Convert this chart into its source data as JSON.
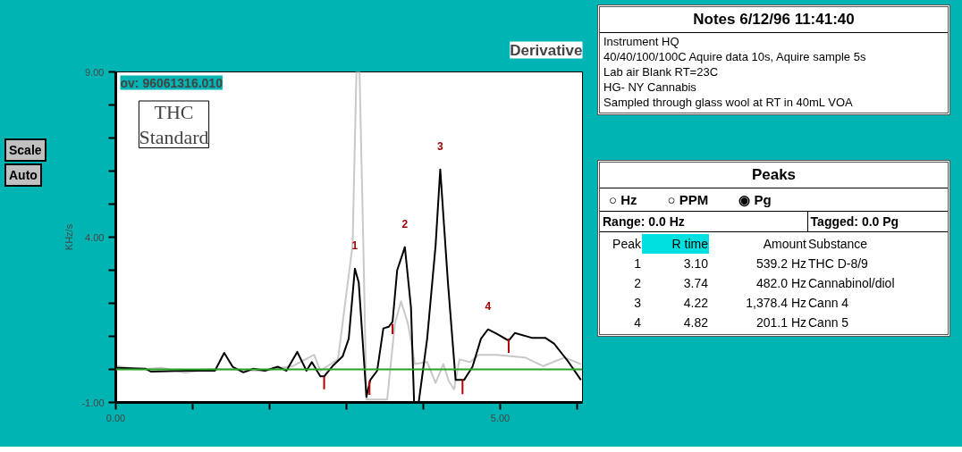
{
  "chart_data": {
    "type": "line",
    "title": "Derivative",
    "ylabel": "KHz/s",
    "xlim": [
      0,
      6.07
    ],
    "xticks": [
      {
        "value": 0,
        "label": "0.00"
      },
      {
        "value": 1,
        "label": null
      },
      {
        "value": 2,
        "label": null
      },
      {
        "value": 3,
        "label": null
      },
      {
        "value": 4,
        "label": null
      },
      {
        "value": 5,
        "label": "5.00"
      },
      {
        "value": 6,
        "label": null
      }
    ],
    "ylim": [
      -1,
      9
    ],
    "yticks": [
      {
        "value": -1,
        "label": "-1.00"
      },
      {
        "value": 0,
        "label": null
      },
      {
        "value": 1,
        "label": null
      },
      {
        "value": 2,
        "label": null
      },
      {
        "value": 3,
        "label": null
      },
      {
        "value": 4,
        "label": "4.00"
      },
      {
        "value": 5,
        "label": null
      },
      {
        "value": 6,
        "label": null
      },
      {
        "value": 7,
        "label": null
      },
      {
        "value": 8,
        "label": null
      },
      {
        "value": 9,
        "label": "9.00"
      }
    ],
    "grid": false,
    "marker": "none",
    "line_style": "solid",
    "series": [
      {
        "color": "#c8c8c8",
        "x": [
          0,
          0.3,
          0.6,
          0.9,
          1.2,
          1.5,
          1.9,
          2.3,
          2.58,
          2.66,
          2.89,
          3.08,
          3.13,
          3.17,
          3.22,
          3.26,
          3.53,
          3.63,
          3.71,
          3.8,
          3.89,
          4.05,
          4.16,
          4.26,
          4.33,
          4.4,
          4.47,
          4.61,
          4.72,
          4.96,
          5.32,
          5.56,
          5.84,
          6.05
        ],
        "values": [
          0.1,
          0.0,
          0.05,
          -0.1,
          0.0,
          0.0,
          -0.05,
          0.1,
          0.44,
          -0.04,
          0.3,
          3.76,
          9.0,
          9.0,
          3.76,
          -0.91,
          -0.91,
          1.38,
          2.06,
          1.38,
          0.16,
          0.22,
          -0.41,
          0.16,
          -0.35,
          -0.6,
          0.3,
          0.22,
          0.44,
          0.44,
          0.36,
          0.1,
          0.36,
          0.16
        ]
      },
      {
        "color": "#000000",
        "x": [
          0,
          0.39,
          0.46,
          0.92,
          1.29,
          1.41,
          1.52,
          1.66,
          1.79,
          1.94,
          2.11,
          2.22,
          2.36,
          2.48,
          2.55,
          2.66,
          2.71,
          2.82,
          2.95,
          3.03,
          3.11,
          3.16,
          3.26,
          3.31,
          3.4,
          3.48,
          3.55,
          3.6,
          3.66,
          3.76,
          3.84,
          3.88,
          3.94,
          4.05,
          4.16,
          4.22,
          4.32,
          4.42,
          4.53,
          4.64,
          4.75,
          4.84,
          4.96,
          5.11,
          5.19,
          5.42,
          5.59,
          5.7,
          5.88,
          6.05
        ],
        "values": [
          0.05,
          0.02,
          -0.07,
          -0.04,
          -0.04,
          0.5,
          0.08,
          -0.09,
          0.02,
          -0.04,
          0.08,
          -0.04,
          0.53,
          -0.04,
          0.22,
          -0.21,
          -0.21,
          0.1,
          0.39,
          0.93,
          3.05,
          2.63,
          -0.83,
          -0.32,
          -0.04,
          1.24,
          1.29,
          1.44,
          3.0,
          3.7,
          1.86,
          -1.0,
          -1.0,
          0.93,
          3.76,
          6.05,
          2.63,
          -0.32,
          -0.32,
          0.08,
          0.93,
          1.21,
          1.07,
          0.87,
          1.1,
          0.95,
          0.95,
          0.78,
          0.25,
          -0.32
        ]
      },
      {
        "color": "#b00000",
        "x": [
          2.71,
          2.71
        ],
        "values": [
          -0.21,
          -0.6
        ]
      },
      {
        "color": "#b00000",
        "x": [
          3.3,
          3.3
        ],
        "values": [
          -0.35,
          -0.77
        ]
      },
      {
        "color": "#b00000",
        "x": [
          3.6,
          3.6
        ],
        "values": [
          1.38,
          1.07
        ]
      },
      {
        "color": "#b00000",
        "x": [
          4.51,
          4.51
        ],
        "values": [
          -0.32,
          -0.75
        ]
      },
      {
        "color": "#b00000",
        "x": [
          5.11,
          5.11
        ],
        "values": [
          0.93,
          0.5
        ]
      }
    ],
    "ref_lines": [
      {
        "axis": "y",
        "value": 0,
        "color": "#2ca02c"
      }
    ],
    "annotations": [
      "ov: 96061316.010",
      "THC\nStandard",
      "Scale",
      "Auto",
      "Notes 6/12/96 11:41:40",
      "Instrument HQ",
      "40/40/100/100C Aquire data 10s, Aquire sample 5s",
      "Lab air Blank RT=23C",
      "HG- NY Cannabis",
      "Sampled through glass wool at RT in 40mL VOA",
      "Peaks",
      "○ Hz",
      "○ PPM",
      "◉ Pg",
      "Range: 0.0 Hz",
      "Tagged: 0.0 Pg",
      "Peak",
      "R time",
      "Amount",
      "Substance",
      "1",
      "3.10",
      "539.2 Hz",
      "THC D-8/9",
      "2",
      "3.74",
      "482.0 Hz",
      "Cannabinol/diol",
      "3",
      "4.22",
      "1,378.4 Hz",
      "Cann 4",
      "4",
      "4.82",
      "201.1 Hz",
      "Cann 5",
      {
        "text": "1",
        "x": 3.11,
        "y": 3.05
      },
      {
        "text": "2",
        "x": 3.76,
        "y": 3.7
      },
      {
        "text": "3",
        "x": 4.22,
        "y": 6.05
      },
      {
        "text": "4",
        "x": 4.84,
        "y": 1.21
      }
    ]
  }
}
